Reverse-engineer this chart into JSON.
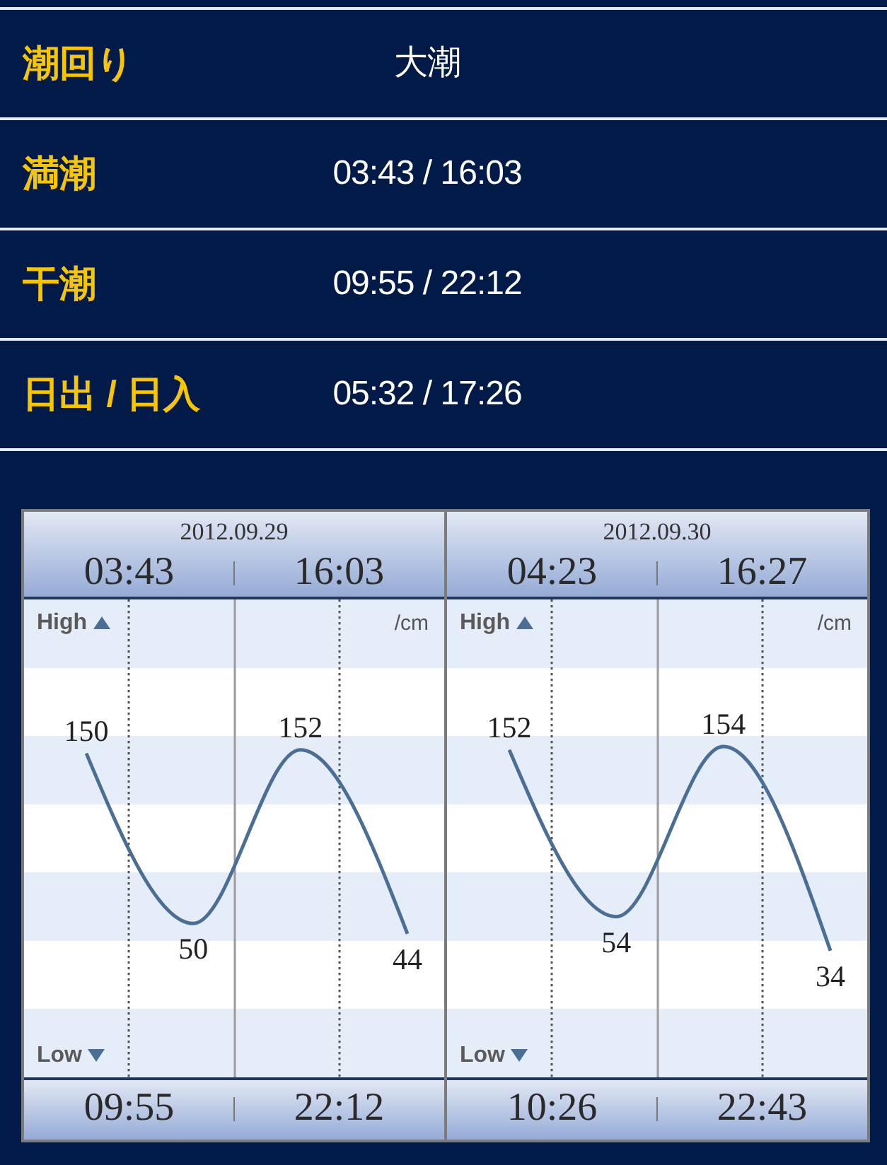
{
  "chart_data": [
    {
      "type": "other",
      "annotations": [
        "潮回り",
        "大潮",
        "満潮",
        "03:43 / 16:03",
        "干潮",
        "09:55 / 22:12",
        "日出 / 日入",
        "05:32 / 17:26"
      ]
    },
    {
      "type": "line",
      "title": "2012.09.29",
      "ylabel": "/cm",
      "annotations": [
        "03:43",
        "16:03",
        "09:55",
        "22:12",
        "High",
        "Low"
      ],
      "tick_labels": false,
      "categories": [
        null,
        null,
        null,
        null
      ],
      "values": [
        150,
        50,
        152,
        44
      ],
      "data_labels": true,
      "color": "#4b6e94"
    },
    {
      "type": "line",
      "title": "2012.09.30",
      "ylabel": "/cm",
      "annotations": [
        "04:23",
        "16:27",
        "10:26",
        "22:43",
        "High",
        "Low"
      ],
      "tick_labels": false,
      "categories": [
        null,
        null,
        null,
        null
      ],
      "values": [
        152,
        54,
        154,
        34
      ],
      "data_labels": true,
      "color": "#4b6e94"
    }
  ]
}
